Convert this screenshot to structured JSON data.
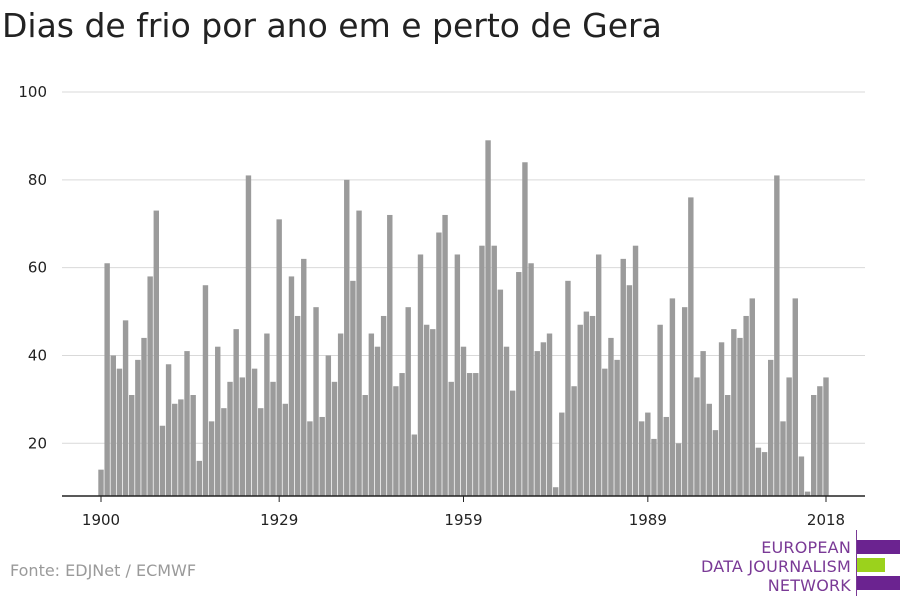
{
  "title": "Dias de frio por ano em e perto de Gera",
  "source": "Fonte: EDJNet / ECMWF",
  "logo": {
    "lines": [
      "EUROPEAN",
      "DATA JOURNALISM",
      "NETWORK"
    ],
    "colors": {
      "text": "#7a3a96",
      "bar_purple": "#6b2390",
      "bar_green": "#9bd21c"
    }
  },
  "colors": {
    "bar": "#9b9b9b",
    "grid": "#d9d9d9",
    "axis": "#222222",
    "text": "#222222"
  },
  "chart_data": {
    "type": "bar",
    "title": "Dias de frio por ano em e perto de Gera",
    "xlabel": "",
    "ylabel": "",
    "ylim": [
      8,
      100
    ],
    "yticks": [
      20,
      40,
      60,
      80,
      100
    ],
    "xticks": [
      1900,
      1929,
      1959,
      1989,
      2018
    ],
    "grid": true,
    "x": [
      1900,
      1901,
      1902,
      1903,
      1904,
      1905,
      1906,
      1907,
      1908,
      1909,
      1910,
      1911,
      1912,
      1913,
      1914,
      1915,
      1916,
      1917,
      1918,
      1919,
      1920,
      1921,
      1922,
      1923,
      1924,
      1925,
      1926,
      1927,
      1928,
      1929,
      1930,
      1931,
      1932,
      1933,
      1934,
      1935,
      1936,
      1937,
      1938,
      1939,
      1940,
      1941,
      1942,
      1943,
      1944,
      1945,
      1946,
      1947,
      1948,
      1949,
      1950,
      1951,
      1952,
      1953,
      1954,
      1955,
      1956,
      1957,
      1958,
      1959,
      1960,
      1961,
      1962,
      1963,
      1964,
      1965,
      1966,
      1967,
      1968,
      1969,
      1970,
      1971,
      1972,
      1973,
      1974,
      1975,
      1976,
      1977,
      1978,
      1979,
      1980,
      1981,
      1982,
      1983,
      1984,
      1985,
      1986,
      1987,
      1988,
      1989,
      1990,
      1991,
      1992,
      1993,
      1994,
      1995,
      1996,
      1997,
      1998,
      1999,
      2000,
      2001,
      2002,
      2003,
      2004,
      2005,
      2006,
      2007,
      2008,
      2009,
      2010,
      2011,
      2012,
      2013,
      2014,
      2015,
      2016,
      2017,
      2018
    ],
    "values": [
      14,
      61,
      40,
      37,
      48,
      31,
      39,
      44,
      58,
      73,
      24,
      38,
      29,
      30,
      41,
      31,
      16,
      56,
      25,
      42,
      28,
      34,
      46,
      35,
      81,
      37,
      28,
      45,
      34,
      71,
      29,
      58,
      49,
      62,
      25,
      51,
      26,
      40,
      34,
      45,
      80,
      57,
      73,
      31,
      45,
      42,
      49,
      72,
      33,
      36,
      51,
      22,
      63,
      47,
      46,
      68,
      72,
      34,
      63,
      42,
      36,
      36,
      65,
      89,
      65,
      55,
      42,
      32,
      59,
      84,
      61,
      41,
      43,
      45,
      10,
      27,
      57,
      33,
      47,
      50,
      49,
      63,
      37,
      44,
      39,
      62,
      56,
      65,
      25,
      27,
      21,
      47,
      26,
      53,
      20,
      51,
      76,
      35,
      41,
      29,
      23,
      43,
      31,
      46,
      44,
      49,
      53,
      19,
      18,
      39,
      81,
      25,
      35,
      53,
      17,
      9,
      31,
      33,
      35
    ]
  }
}
